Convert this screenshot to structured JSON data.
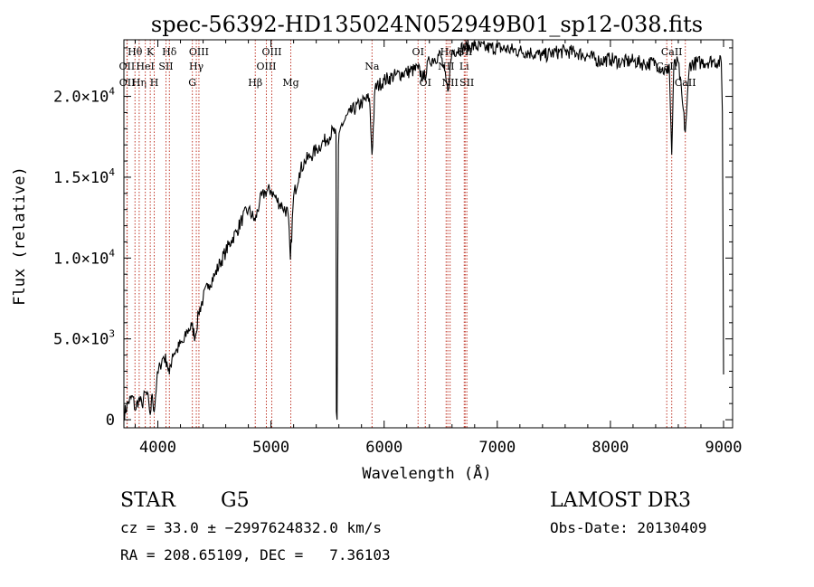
{
  "chart_data": {
    "type": "line",
    "title": "spec-56392-HD135024N052949B01_sp12-038.fits",
    "xlabel": "Wavelength (Å)",
    "ylabel": "Flux (relative)",
    "xlim": [
      3700,
      9080
    ],
    "ylim": [
      -500,
      23500
    ],
    "x_ticks": [
      4000,
      5000,
      6000,
      7000,
      8000,
      9000
    ],
    "x_tick_labels": [
      "4000",
      "5000",
      "6000",
      "7000",
      "8000",
      "9000"
    ],
    "y_ticks": [
      0,
      5000,
      10000,
      15000,
      20000
    ],
    "y_tick_labels": [
      {
        "mant": "0",
        "exp": ""
      },
      {
        "mant": "5.0×10",
        "exp": "3"
      },
      {
        "mant": "1.0×10",
        "exp": "4"
      },
      {
        "mant": "1.5×10",
        "exp": "4"
      },
      {
        "mant": "2.0×10",
        "exp": "4"
      }
    ],
    "series": [
      {
        "name": "spectrum",
        "points": [
          [
            3700,
            300
          ],
          [
            3740,
            1100
          ],
          [
            3780,
            1400
          ],
          [
            3800,
            600
          ],
          [
            3830,
            1300
          ],
          [
            3860,
            900
          ],
          [
            3890,
            1700
          ],
          [
            3920,
            1100
          ],
          [
            3933,
            300
          ],
          [
            3950,
            1600
          ],
          [
            3968,
            500
          ],
          [
            3990,
            2400
          ],
          [
            4020,
            3400
          ],
          [
            4050,
            3900
          ],
          [
            4080,
            3600
          ],
          [
            4102,
            2800
          ],
          [
            4130,
            4100
          ],
          [
            4170,
            4300
          ],
          [
            4200,
            4700
          ],
          [
            4230,
            4800
          ],
          [
            4260,
            5500
          ],
          [
            4300,
            5800
          ],
          [
            4330,
            5100
          ],
          [
            4360,
            6600
          ],
          [
            4400,
            7500
          ],
          [
            4450,
            8400
          ],
          [
            4500,
            8900
          ],
          [
            4550,
            9700
          ],
          [
            4600,
            10400
          ],
          [
            4650,
            11100
          ],
          [
            4700,
            11700
          ],
          [
            4750,
            12500
          ],
          [
            4800,
            13000
          ],
          [
            4861,
            12300
          ],
          [
            4900,
            13500
          ],
          [
            4950,
            14100
          ],
          [
            5000,
            14200
          ],
          [
            5050,
            13600
          ],
          [
            5100,
            13200
          ],
          [
            5150,
            12800
          ],
          [
            5172,
            9900
          ],
          [
            5200,
            13800
          ],
          [
            5250,
            15300
          ],
          [
            5300,
            16000
          ],
          [
            5350,
            16300
          ],
          [
            5400,
            16700
          ],
          [
            5450,
            17100
          ],
          [
            5500,
            17400
          ],
          [
            5550,
            17900
          ],
          [
            5575,
            17600
          ],
          [
            5578,
            500
          ],
          [
            5584,
            0
          ],
          [
            5590,
            9000
          ],
          [
            5596,
            17000
          ],
          [
            5620,
            18200
          ],
          [
            5700,
            19000
          ],
          [
            5800,
            19600
          ],
          [
            5870,
            19900
          ],
          [
            5893,
            16400
          ],
          [
            5920,
            20500
          ],
          [
            6000,
            21000
          ],
          [
            6100,
            21300
          ],
          [
            6200,
            21500
          ],
          [
            6300,
            21700
          ],
          [
            6350,
            21100
          ],
          [
            6400,
            22200
          ],
          [
            6500,
            22600
          ],
          [
            6563,
            20300
          ],
          [
            6600,
            22800
          ],
          [
            6700,
            23000
          ],
          [
            6800,
            23100
          ],
          [
            6900,
            23000
          ],
          [
            7000,
            23000
          ],
          [
            7100,
            22900
          ],
          [
            7200,
            22800
          ],
          [
            7300,
            22700
          ],
          [
            7400,
            22500
          ],
          [
            7500,
            22700
          ],
          [
            7600,
            22800
          ],
          [
            7700,
            22700
          ],
          [
            7800,
            22500
          ],
          [
            7900,
            22200
          ],
          [
            8000,
            22300
          ],
          [
            8100,
            22100
          ],
          [
            8200,
            22200
          ],
          [
            8300,
            22000
          ],
          [
            8400,
            22100
          ],
          [
            8498,
            21400
          ],
          [
            8520,
            22000
          ],
          [
            8542,
            16400
          ],
          [
            8560,
            21900
          ],
          [
            8600,
            22100
          ],
          [
            8662,
            17800
          ],
          [
            8700,
            22000
          ],
          [
            8800,
            22100
          ],
          [
            8900,
            22200
          ],
          [
            8980,
            22100
          ],
          [
            8990,
            19000
          ],
          [
            9000,
            2800
          ]
        ]
      }
    ],
    "lines": [
      {
        "label": "Hθ",
        "x": 3798,
        "row": 0
      },
      {
        "label": "OII",
        "x": 3727,
        "row": 1
      },
      {
        "label": "OII",
        "x": 3729,
        "row": 2
      },
      {
        "label": "Hη",
        "x": 3835,
        "row": 2
      },
      {
        "label": "HeI",
        "x": 3889,
        "row": 1
      },
      {
        "label": "K",
        "x": 3933,
        "row": 0
      },
      {
        "label": "SII",
        "x": 4072,
        "row": 1
      },
      {
        "label": "H",
        "x": 3968,
        "row": 2
      },
      {
        "label": "Hδ",
        "x": 4102,
        "row": 0
      },
      {
        "label": "OIII",
        "x": 4363,
        "row": 0
      },
      {
        "label": "Hγ",
        "x": 4340,
        "row": 1
      },
      {
        "label": "G",
        "x": 4305,
        "row": 2
      },
      {
        "label": "Hβ",
        "x": 4861,
        "row": 2
      },
      {
        "label": "OIII",
        "x": 5007,
        "row": 0
      },
      {
        "label": "OIII",
        "x": 4959,
        "row": 1
      },
      {
        "label": "Mg",
        "x": 5175,
        "row": 2
      },
      {
        "label": "Na",
        "x": 5893,
        "row": 1
      },
      {
        "label": "OI",
        "x": 6300,
        "row": 0
      },
      {
        "label": "OI",
        "x": 6364,
        "row": 2
      },
      {
        "label": "Hα",
        "x": 6563,
        "row": 0
      },
      {
        "label": "NII",
        "x": 6548,
        "row": 1
      },
      {
        "label": "NII",
        "x": 6583,
        "row": 2
      },
      {
        "label": "SII",
        "x": 6716,
        "row": 0
      },
      {
        "label": "Li",
        "x": 6708,
        "row": 1
      },
      {
        "label": "SII",
        "x": 6731,
        "row": 2
      },
      {
        "label": "CaII",
        "x": 8542,
        "row": 0
      },
      {
        "label": "CaII",
        "x": 8498,
        "row": 1
      },
      {
        "label": "CaII",
        "x": 8662,
        "row": 2
      }
    ]
  },
  "info": {
    "class": "STAR",
    "subclass": "G5",
    "survey": "LAMOST DR3",
    "cz": "cz = 33.0 ± −2997624832.0 km/s",
    "obs_date": "Obs-Date: 20130409",
    "radec": "RA = 208.65109, DEC =   7.36103"
  }
}
